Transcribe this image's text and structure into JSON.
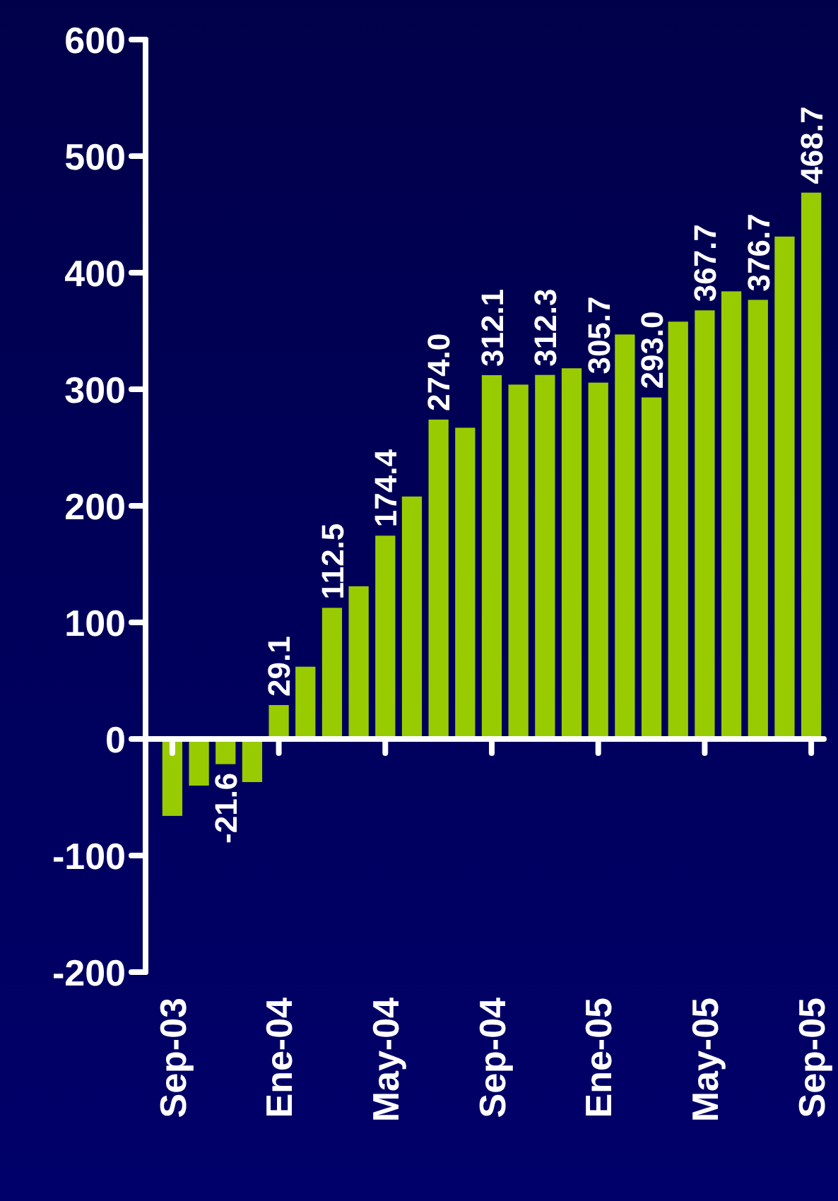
{
  "chart_data": {
    "type": "bar",
    "categories": [
      "Sep-03",
      null,
      null,
      null,
      "Ene-04",
      null,
      null,
      null,
      "May-04",
      null,
      null,
      null,
      "Sep-04",
      null,
      null,
      null,
      "Ene-05",
      null,
      null,
      null,
      "May-05",
      null,
      null,
      null,
      "Sep-05"
    ],
    "values": [
      -66,
      -40,
      -21.6,
      -37,
      29.1,
      62,
      112.5,
      131,
      174.4,
      208,
      274.0,
      267,
      312.1,
      304,
      312.3,
      318,
      305.7,
      347,
      293.0,
      358,
      367.7,
      384,
      376.7,
      431,
      468.7
    ],
    "value_labels": [
      null,
      null,
      "-21.6",
      null,
      "29.1",
      null,
      "112.5",
      null,
      "174.4",
      null,
      "274.0",
      null,
      "312.1",
      null,
      "312.3",
      null,
      "305.7",
      null,
      "293.0",
      null,
      "367.7",
      null,
      "376.7",
      null,
      "468.7"
    ],
    "color": "#99cc00",
    "ylim": [
      -200,
      600
    ],
    "yticks": [
      -200,
      -100,
      0,
      100,
      200,
      300,
      400,
      500,
      600
    ]
  }
}
